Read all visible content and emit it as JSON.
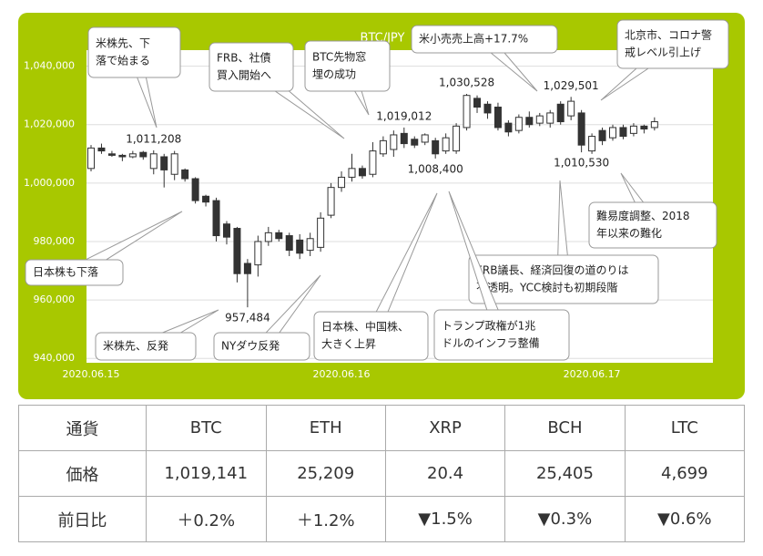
{
  "chart_data": {
    "type": "candlestick",
    "title": "BTC/JPY",
    "categories": [
      "2020.06.15",
      null,
      null,
      null,
      null,
      null,
      null,
      null,
      null,
      null,
      null,
      null,
      null,
      null,
      null,
      null,
      null,
      null,
      null,
      null,
      null,
      null,
      null,
      null,
      "2020.06.16",
      null,
      null,
      null,
      null,
      null,
      null,
      null,
      null,
      null,
      null,
      null,
      null,
      null,
      null,
      null,
      null,
      null,
      null,
      null,
      null,
      null,
      null,
      null,
      "2020.06.17",
      null,
      null,
      null,
      null,
      null,
      null
    ],
    "candles": [
      {
        "open": 1005000,
        "high": 1013000,
        "low": 1004000,
        "close": 1012000
      },
      {
        "open": 1012000,
        "high": 1013500,
        "low": 1010000,
        "close": 1011000
      },
      {
        "open": 1010000,
        "high": 1011000,
        "low": 1009000,
        "close": 1009500
      },
      {
        "open": 1009500,
        "high": 1010000,
        "low": 1007500,
        "close": 1009000
      },
      {
        "open": 1009000,
        "high": 1011000,
        "low": 1008500,
        "close": 1010000
      },
      {
        "open": 1010500,
        "high": 1011000,
        "low": 1008000,
        "close": 1009000
      },
      {
        "open": 1005000,
        "high": 1011208,
        "low": 1003000,
        "close": 1010000
      },
      {
        "open": 1009000,
        "high": 1010000,
        "low": 998500,
        "close": 1004500
      },
      {
        "open": 1003000,
        "high": 1011000,
        "low": 1001000,
        "close": 1010000
      },
      {
        "open": 1004500,
        "high": 1005000,
        "low": 1000500,
        "close": 1001500
      },
      {
        "open": 1001500,
        "high": 1002000,
        "low": 993000,
        "close": 994000
      },
      {
        "open": 995500,
        "high": 996000,
        "low": 992000,
        "close": 993500
      },
      {
        "open": 994000,
        "high": 995000,
        "low": 980000,
        "close": 982000
      },
      {
        "open": 986000,
        "high": 987000,
        "low": 979000,
        "close": 981500
      },
      {
        "open": 984500,
        "high": 985000,
        "low": 966000,
        "close": 969000
      },
      {
        "open": 972500,
        "high": 974000,
        "low": 957484,
        "close": 969000
      },
      {
        "open": 972000,
        "high": 982000,
        "low": 968000,
        "close": 980000
      },
      {
        "open": 980000,
        "high": 985000,
        "low": 978500,
        "close": 983000
      },
      {
        "open": 983000,
        "high": 984000,
        "low": 980000,
        "close": 981000
      },
      {
        "open": 982000,
        "high": 983000,
        "low": 975000,
        "close": 977000
      },
      {
        "open": 980500,
        "high": 982500,
        "low": 974000,
        "close": 976000
      },
      {
        "open": 977000,
        "high": 983000,
        "low": 975000,
        "close": 981000
      },
      {
        "open": 978000,
        "high": 990000,
        "low": 976500,
        "close": 988000
      },
      {
        "open": 989000,
        "high": 1000000,
        "low": 988000,
        "close": 998500
      },
      {
        "open": 998500,
        "high": 1004000,
        "low": 997000,
        "close": 1002000
      },
      {
        "open": 1002000,
        "high": 1010000,
        "low": 1000500,
        "close": 1005000
      },
      {
        "open": 1005000,
        "high": 1006000,
        "low": 1001500,
        "close": 1002500
      },
      {
        "open": 1003000,
        "high": 1014000,
        "low": 1002000,
        "close": 1011000
      },
      {
        "open": 1010000,
        "high": 1016000,
        "low": 1009000,
        "close": 1014500
      },
      {
        "open": 1011500,
        "high": 1018000,
        "low": 1009000,
        "close": 1016500
      },
      {
        "open": 1017000,
        "high": 1019012,
        "low": 1012000,
        "close": 1013500
      },
      {
        "open": 1015000,
        "high": 1016000,
        "low": 1012000,
        "close": 1013000
      },
      {
        "open": 1014000,
        "high": 1017000,
        "low": 1013000,
        "close": 1016500
      },
      {
        "open": 1014500,
        "high": 1015500,
        "low": 1008400,
        "close": 1010000
      },
      {
        "open": 1011000,
        "high": 1017000,
        "low": 1010000,
        "close": 1015500
      },
      {
        "open": 1011000,
        "high": 1020500,
        "low": 1010000,
        "close": 1019500
      },
      {
        "open": 1019000,
        "high": 1030528,
        "low": 1018000,
        "close": 1030000
      },
      {
        "open": 1029000,
        "high": 1030000,
        "low": 1024000,
        "close": 1026000
      },
      {
        "open": 1027000,
        "high": 1028000,
        "low": 1022000,
        "close": 1024000
      },
      {
        "open": 1026000,
        "high": 1027500,
        "low": 1018000,
        "close": 1019000
      },
      {
        "open": 1020500,
        "high": 1021500,
        "low": 1016000,
        "close": 1017500
      },
      {
        "open": 1018000,
        "high": 1023500,
        "low": 1017000,
        "close": 1022500
      },
      {
        "open": 1022500,
        "high": 1024500,
        "low": 1019000,
        "close": 1020000
      },
      {
        "open": 1020500,
        "high": 1024000,
        "low": 1019500,
        "close": 1023000
      },
      {
        "open": 1020500,
        "high": 1025000,
        "low": 1019000,
        "close": 1024000
      },
      {
        "open": 1027000,
        "high": 1028000,
        "low": 1020000,
        "close": 1021000
      },
      {
        "open": 1023000,
        "high": 1029501,
        "low": 1021500,
        "close": 1028000
      },
      {
        "open": 1024000,
        "high": 1025000,
        "low": 1010530,
        "close": 1013000
      },
      {
        "open": 1011000,
        "high": 1017000,
        "low": 1010000,
        "close": 1016000
      },
      {
        "open": 1018000,
        "high": 1019000,
        "low": 1013000,
        "close": 1014500
      },
      {
        "open": 1015500,
        "high": 1020000,
        "low": 1014500,
        "close": 1019000
      },
      {
        "open": 1019000,
        "high": 1020000,
        "low": 1015000,
        "close": 1016000
      },
      {
        "open": 1017000,
        "high": 1020500,
        "low": 1016000,
        "close": 1019500
      },
      {
        "open": 1019500,
        "high": 1020000,
        "low": 1017000,
        "close": 1018500
      },
      {
        "open": 1019000,
        "high": 1022500,
        "low": 1018000,
        "close": 1021000
      }
    ],
    "up_color": "#ffffff",
    "down_color": "#333333",
    "ylim": [
      938500,
      1045500
    ],
    "yticks": [
      {
        "value": 940000,
        "label": "940,000"
      },
      {
        "value": 960000,
        "label": "960,000"
      },
      {
        "value": 980000,
        "label": "980,000"
      },
      {
        "value": 1000000,
        "label": "1,000,000"
      },
      {
        "value": 1020000,
        "label": "1,020,000"
      },
      {
        "value": 1040000,
        "label": "1,040,000"
      }
    ],
    "grid": true,
    "price_labels": [
      {
        "value": 1011208,
        "label": "1,011,208"
      },
      {
        "value": 1019012,
        "label": "1,019,012"
      },
      {
        "value": 1030528,
        "label": "1,030,528"
      },
      {
        "value": 1029501,
        "label": "1,029,501"
      },
      {
        "value": 1008400,
        "label": "1,008,400"
      },
      {
        "value": 1010530,
        "label": "1,010,530"
      },
      {
        "value": 957484,
        "label": "957,484"
      }
    ],
    "callouts": [
      {
        "lines": [
          "米株先、下",
          "落で始まる"
        ]
      },
      {
        "lines": [
          "FRB、社債",
          "買入開始へ"
        ]
      },
      {
        "lines": [
          "BTC先物窓",
          "埋の成功"
        ]
      },
      {
        "lines": [
          "米小売売上高+17.7%"
        ]
      },
      {
        "lines": [
          "北京市、コロナ警",
          "戒レベル引上げ"
        ]
      },
      {
        "lines": [
          "難易度調整、2018",
          "年以来の難化"
        ]
      },
      {
        "lines": [
          "FRB議長、経済回復の道のりは",
          "不透明。YCC検討も初期段階"
        ]
      },
      {
        "lines": [
          "トランプ政権が1兆",
          "ドルのインフラ整備"
        ]
      },
      {
        "lines": [
          "日本株、中国株、",
          "大きく上昇"
        ]
      },
      {
        "lines": [
          "日本株も下落"
        ]
      },
      {
        "lines": [
          "米株先、反発"
        ]
      },
      {
        "lines": [
          "NYダウ反発"
        ]
      }
    ]
  },
  "table": {
    "header": [
      "通貨",
      "BTC",
      "ETH",
      "XRP",
      "BCH",
      "LTC"
    ],
    "rows": [
      [
        "価格",
        "1,019,141",
        "25,209",
        "20.4",
        "25,405",
        "4,699"
      ],
      [
        "前日比",
        "＋0.2%",
        "＋1.2%",
        "▼1.5%",
        "▼0.3%",
        "▼0.6%"
      ]
    ]
  }
}
